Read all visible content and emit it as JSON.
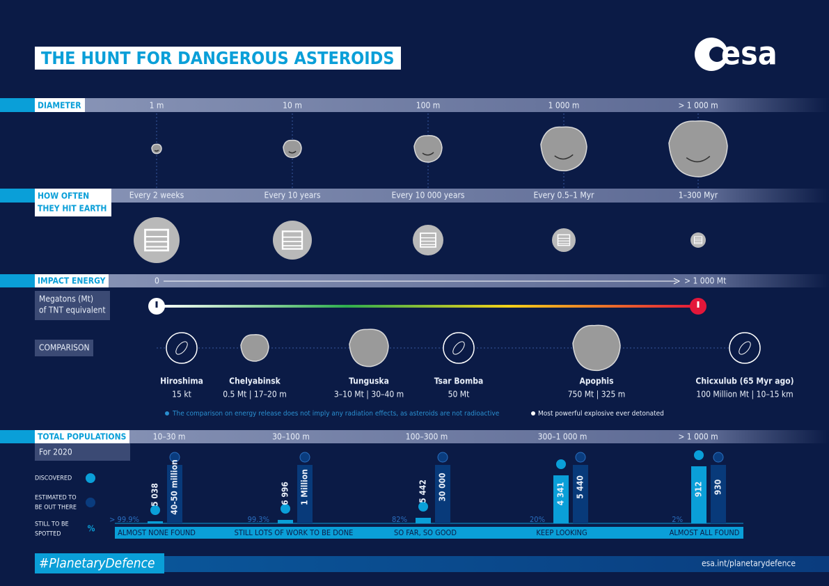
{
  "header": {
    "title": "THE HUNT FOR DANGEROUS ASTEROIDS",
    "logo": "esa"
  },
  "diameter": {
    "label": "DIAMETER",
    "sizes": [
      "1 m",
      "10 m",
      "100 m",
      "1 000 m",
      "> 1 000 m"
    ]
  },
  "frequency": {
    "label_lines": [
      "HOW OFTEN",
      "THEY HIT EARTH"
    ],
    "values": [
      "Every 2 weeks",
      "Every 10 years",
      "Every 10 000 years",
      "Every 0.5–1 Myr",
      "1–300 Myr"
    ]
  },
  "energy": {
    "label": "IMPACT ENERGY",
    "unit_lines": [
      "Megatons (Mt)",
      "of TNT equivalent"
    ],
    "scale_start": "0",
    "scale_end": "> 1 000 Mt"
  },
  "comparison": {
    "label": "COMPARISON",
    "items": [
      {
        "name": "Hiroshima",
        "detail": "15 kt"
      },
      {
        "name": "Chelyabinsk",
        "detail": "0.5 Mt | 17–20 m"
      },
      {
        "name": "Tunguska",
        "detail": "3–10 Mt | 30–40 m"
      },
      {
        "name": "Tsar Bomba",
        "detail": "50 Mt"
      },
      {
        "name": "Apophis",
        "detail": "750 Mt | 325 m"
      },
      {
        "name": "Chicxulub (65 Myr ago)",
        "detail": "100 Million Mt | 10–15 km"
      }
    ],
    "notes": [
      "The comparison on energy release does not imply any radiation effects, as asteroids are not radioactive",
      "Most powerful explosive ever detonated"
    ]
  },
  "populations": {
    "label": "TOTAL POPULATIONS",
    "subtitle": "For 2020",
    "legend": [
      [
        "DISCOVERED"
      ],
      [
        "ESTIMATED TO",
        "BE OUT THERE"
      ],
      [
        "STILL TO BE",
        "SPOTTED"
      ]
    ],
    "percent_symbol": "%",
    "groups": [
      {
        "range": "10–30 m",
        "discovered": "5 038",
        "estimated": "40-50 million",
        "remaining": "> 99.9%",
        "status": "ALMOST NONE FOUND"
      },
      {
        "range": "30–100 m",
        "discovered": "6 996",
        "estimated": "1 Million",
        "remaining": "99.3%",
        "status": "STILL LOTS OF WORK TO BE DONE"
      },
      {
        "range": "100–300 m",
        "discovered": "5 442",
        "estimated": "30 000",
        "remaining": "82%",
        "status": "SO FAR, SO GOOD"
      },
      {
        "range": "300–1 000 m",
        "discovered": "4 341",
        "estimated": "5 440",
        "remaining": "20%",
        "status": "KEEP LOOKING"
      },
      {
        "range": "> 1 000 m",
        "discovered": "912",
        "estimated": "930",
        "remaining": "2%",
        "status": "ALMOST ALL FOUND"
      }
    ]
  },
  "footer": {
    "hashtag": "#PlanetaryDefence",
    "url": "esa.int/planetarydefence"
  }
}
